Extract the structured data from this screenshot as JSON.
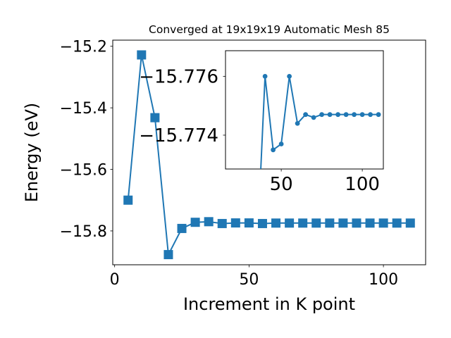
{
  "chart_data": [
    {
      "type": "line",
      "title": "Converged at 19x19x19 Automatic Mesh 85",
      "xlabel": "Increment in K point",
      "ylabel": "Energy (eV)",
      "marker": "square",
      "color": "#1f77b4",
      "xlim": [
        -0.7,
        115.7
      ],
      "ylim": [
        -15.91,
        -15.18
      ],
      "xticks": [
        0,
        50,
        100
      ],
      "xtick_labels": [
        "0",
        "50",
        "100"
      ],
      "yticks": [
        -15.2,
        -15.4,
        -15.6,
        -15.8
      ],
      "ytick_labels": [
        "−15.2",
        "−15.4",
        "−15.6",
        "−15.8"
      ],
      "x": [
        5,
        10,
        15,
        20,
        25,
        30,
        35,
        40,
        45,
        50,
        55,
        60,
        65,
        70,
        75,
        80,
        85,
        90,
        95,
        100,
        105,
        110
      ],
      "y": [
        -15.7,
        -15.228,
        -15.432,
        -15.877,
        -15.792,
        -15.772,
        -15.77,
        -15.776,
        -15.774,
        -15.774,
        -15.776,
        -15.7745,
        -15.7745,
        -15.7745,
        -15.7745,
        -15.7745,
        -15.7745,
        -15.7745,
        -15.7745,
        -15.7745,
        -15.7745,
        -15.7745
      ]
    },
    {
      "type": "line",
      "role": "inset",
      "marker": "circle",
      "color": "#1f77b4",
      "xlim": [
        15.6,
        113.0
      ],
      "ylim": [
        -15.77285,
        -15.77687
      ],
      "xticks": [
        50,
        100
      ],
      "xtick_labels": [
        "50",
        "100"
      ],
      "yticks": [
        -15.776,
        -15.774
      ],
      "ytick_labels": [
        "−15.776",
        "−15.774"
      ],
      "x": [
        35,
        40,
        45,
        50,
        55,
        60,
        65,
        70,
        75,
        80,
        85,
        90,
        95,
        100,
        105,
        110
      ],
      "y": [
        -15.77,
        -15.776,
        -15.7735,
        -15.7737,
        -15.776,
        -15.7744,
        -15.7747,
        -15.7746,
        -15.7747,
        -15.7747,
        -15.7747,
        -15.7747,
        -15.7747,
        -15.7747,
        -15.7747,
        -15.7747
      ]
    }
  ]
}
